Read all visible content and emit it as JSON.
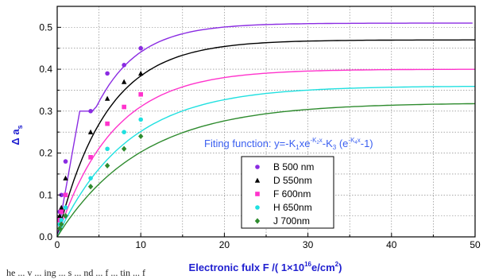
{
  "chart_data": {
    "type": "scatter",
    "title": "",
    "xlabel_main": "Electronic fulx  F /(  1×10",
    "xlabel_exp": "16",
    "xlabel_unit": "e/cm",
    "xlabel_unit_exp": "2",
    "xlabel_close": ")",
    "ylabel_main": "Δ a",
    "ylabel_sub": "s",
    "xlim": [
      0,
      50
    ],
    "ylim": [
      0.0,
      0.55
    ],
    "xticks": [
      "0",
      "10",
      "20",
      "30",
      "40",
      "50"
    ],
    "yticks": [
      "0.0",
      "0.1",
      "0.2",
      "0.3",
      "0.4",
      "0.5"
    ],
    "grid": true,
    "legend_position": "lower-center",
    "annotation": {
      "prefix": "Fiting function: y=-K",
      "k1": "1",
      "mid1": "xe",
      "exp1": "-K",
      "exp1_sub": "2",
      "exp1_end": "x",
      "mid2": "-K",
      "k3": "3",
      "mid3": " (e",
      "exp2": "-K",
      "exp2_sub": "4",
      "exp2_end": "x",
      "suffix": "-1)"
    },
    "series": [
      {
        "name": "B   500 nm",
        "color": "#8a2be2",
        "marker": "circle",
        "points": [
          [
            0.3,
            0.06
          ],
          [
            0.5,
            0.1
          ],
          [
            1,
            0.18
          ],
          [
            4,
            0.3
          ],
          [
            6,
            0.39
          ],
          [
            8,
            0.41
          ],
          [
            10,
            0.45
          ]
        ],
        "fit": {
          "a": 0.51,
          "k": 0.2,
          "knee": [
            2.7,
            0.3
          ]
        }
      },
      {
        "name": "D   550nm",
        "color": "#000000",
        "marker": "triangle",
        "points": [
          [
            0.3,
            0.05
          ],
          [
            0.5,
            0.07
          ],
          [
            1,
            0.14
          ],
          [
            4,
            0.25
          ],
          [
            6,
            0.33
          ],
          [
            8,
            0.37
          ],
          [
            10,
            0.39
          ]
        ],
        "fit": {
          "a": 0.47,
          "k": 0.17
        }
      },
      {
        "name": "F   600nm",
        "color": "#ff33cc",
        "marker": "square",
        "points": [
          [
            0.3,
            0.04
          ],
          [
            0.5,
            0.06
          ],
          [
            1,
            0.1
          ],
          [
            4,
            0.19
          ],
          [
            6,
            0.27
          ],
          [
            8,
            0.31
          ],
          [
            10,
            0.34
          ]
        ],
        "fit": {
          "a": 0.4,
          "k": 0.15
        }
      },
      {
        "name": "H   650nm",
        "color": "#20e0e0",
        "marker": "circle",
        "points": [
          [
            0.3,
            0.03
          ],
          [
            0.5,
            0.04
          ],
          [
            1,
            0.07
          ],
          [
            4,
            0.14
          ],
          [
            6,
            0.21
          ],
          [
            8,
            0.25
          ],
          [
            10,
            0.28
          ]
        ],
        "fit": {
          "a": 0.36,
          "k": 0.12
        }
      },
      {
        "name": "J   700nm",
        "color": "#2e8b2e",
        "marker": "diamond",
        "points": [
          [
            0.3,
            0.02
          ],
          [
            0.5,
            0.03
          ],
          [
            1,
            0.05
          ],
          [
            4,
            0.12
          ],
          [
            6,
            0.17
          ],
          [
            8,
            0.21
          ],
          [
            10,
            0.24
          ]
        ],
        "fit": {
          "a": 0.32,
          "k": 0.1
        }
      }
    ]
  },
  "caption": "he  ...  v  ... ing  ... s  ... nd  ... f  ... tin  ... f"
}
